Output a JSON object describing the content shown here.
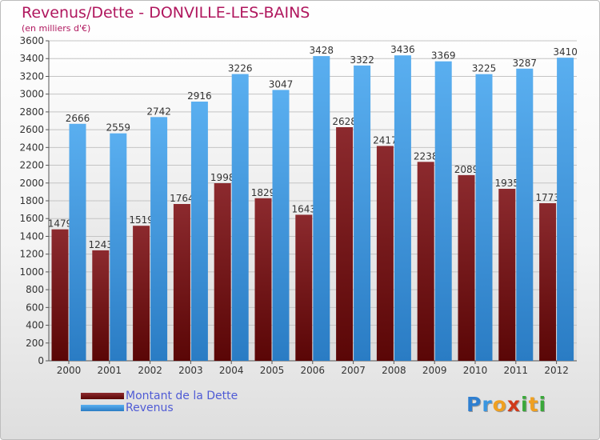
{
  "header": {
    "title": "Revenus/Dette - DONVILLE-LES-BAINS",
    "subtitle": "(en milliers d'€)"
  },
  "colors": {
    "title": "#b0175e",
    "debt": "#7a1a1a",
    "revenue": "#3a96e0",
    "legend_text": "#4f5bd5"
  },
  "chart_data": {
    "type": "bar",
    "title": "Revenus/Dette - DONVILLE-LES-BAINS",
    "subtitle": "(en milliers d'€)",
    "categories": [
      "2000",
      "2001",
      "2002",
      "2003",
      "2004",
      "2005",
      "2006",
      "2007",
      "2008",
      "2009",
      "2010",
      "2011",
      "2012"
    ],
    "series": [
      {
        "name": "Montant de la Dette",
        "values": [
          1479,
          1243,
          1519,
          1764,
          1998,
          1829,
          1643,
          2628,
          2417,
          2238,
          2089,
          1935,
          1773
        ]
      },
      {
        "name": "Revenus",
        "values": [
          2666,
          2559,
          2742,
          2916,
          3226,
          3047,
          3428,
          3322,
          3436,
          3369,
          3225,
          3287,
          3410
        ]
      }
    ],
    "y_ticks": [
      0,
      200,
      400,
      600,
      800,
      1000,
      1200,
      1400,
      1600,
      1800,
      2000,
      2200,
      2400,
      2600,
      2800,
      3000,
      3200,
      3400,
      3600
    ],
    "ylim": [
      0,
      3600
    ],
    "grid": true,
    "legend_position": "bottom-left"
  },
  "legend": [
    {
      "label": "Montant de la Dette"
    },
    {
      "label": "Revenus"
    }
  ],
  "logo": {
    "letters": [
      {
        "ch": "P",
        "color": "#2f7fd0"
      },
      {
        "ch": "r",
        "color": "#3a96e0"
      },
      {
        "ch": "o",
        "color": "#f0a020"
      },
      {
        "ch": "x",
        "color": "#d03a1a"
      },
      {
        "ch": "i",
        "color": "#3aa83a"
      },
      {
        "ch": "t",
        "color": "#f0a020"
      },
      {
        "ch": "i",
        "color": "#3aa83a"
      }
    ]
  }
}
